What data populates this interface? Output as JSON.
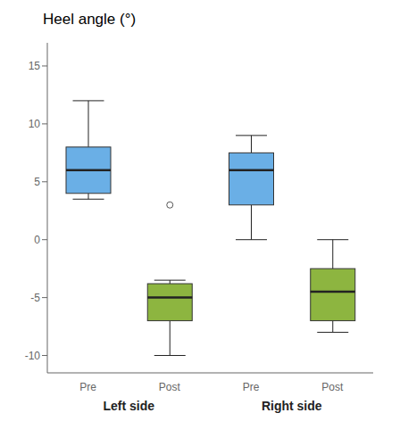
{
  "chart_data": {
    "type": "box",
    "title": "Heel angle (°)",
    "groups": [
      {
        "name": "Left side",
        "boxes": [
          {
            "category": "Pre",
            "color": "#6aafe6",
            "q1": 4.0,
            "median": 6.0,
            "q3": 8.0,
            "whisker_low": 3.5,
            "whisker_high": 12.0,
            "outliers": []
          },
          {
            "category": "Post",
            "color": "#8db540",
            "q1": -7.0,
            "median": -5.0,
            "q3": -3.8,
            "whisker_low": -10.0,
            "whisker_high": -3.5,
            "outliers": [
              3.0
            ]
          }
        ]
      },
      {
        "name": "Right side",
        "boxes": [
          {
            "category": "Pre",
            "color": "#6aafe6",
            "q1": 3.0,
            "median": 6.0,
            "q3": 7.5,
            "whisker_low": 0.0,
            "whisker_high": 9.0,
            "outliers": []
          },
          {
            "category": "Post",
            "color": "#8db540",
            "q1": -7.0,
            "median": -4.5,
            "q3": -2.5,
            "whisker_low": -8.0,
            "whisker_high": 0.0,
            "outliers": []
          }
        ]
      }
    ],
    "ylim": [
      -11.5,
      17
    ],
    "yticks": [
      -10,
      -5,
      0,
      5,
      10,
      15
    ],
    "grid": false
  }
}
